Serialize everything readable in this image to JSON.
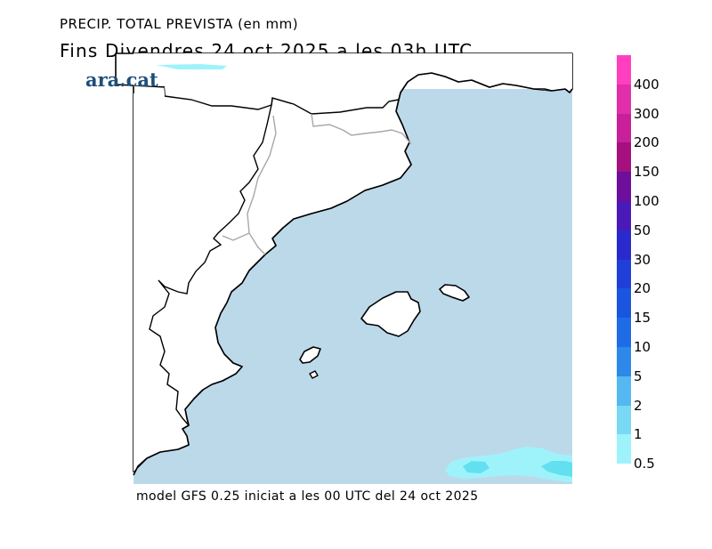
{
  "header": {
    "title_line1": "PRECIP. TOTAL PREVISTA (en mm)",
    "title_line2": "Fins Divendres 24.oct.2025 a les 03h UTC",
    "brand": "ara.cat"
  },
  "footer": {
    "model_info": "model GFS 0.25 iniciat a les 00 UTC del 24 oct 2025"
  },
  "map": {
    "sea_color": "#bcd9ea",
    "land_color": "#ffffff",
    "coast_color": "#000000",
    "border_color": "#a8a8a8",
    "precip_light_color": "#9ef3fb",
    "precip_medium_color": "#63e0f0"
  },
  "legend": {
    "labels": [
      "400",
      "300",
      "200",
      "150",
      "100",
      "50",
      "30",
      "20",
      "15",
      "10",
      "5",
      "2",
      "1",
      "0.5"
    ],
    "colors": [
      "#ff3fbf",
      "#e02fa8",
      "#c8209a",
      "#a5107e",
      "#6d0f9a",
      "#4a1ab8",
      "#2a2acc",
      "#1f3fd8",
      "#1a55e0",
      "#1e6be6",
      "#2d88ea",
      "#55b8f0",
      "#79d8f4",
      "#9ef3fb"
    ]
  }
}
